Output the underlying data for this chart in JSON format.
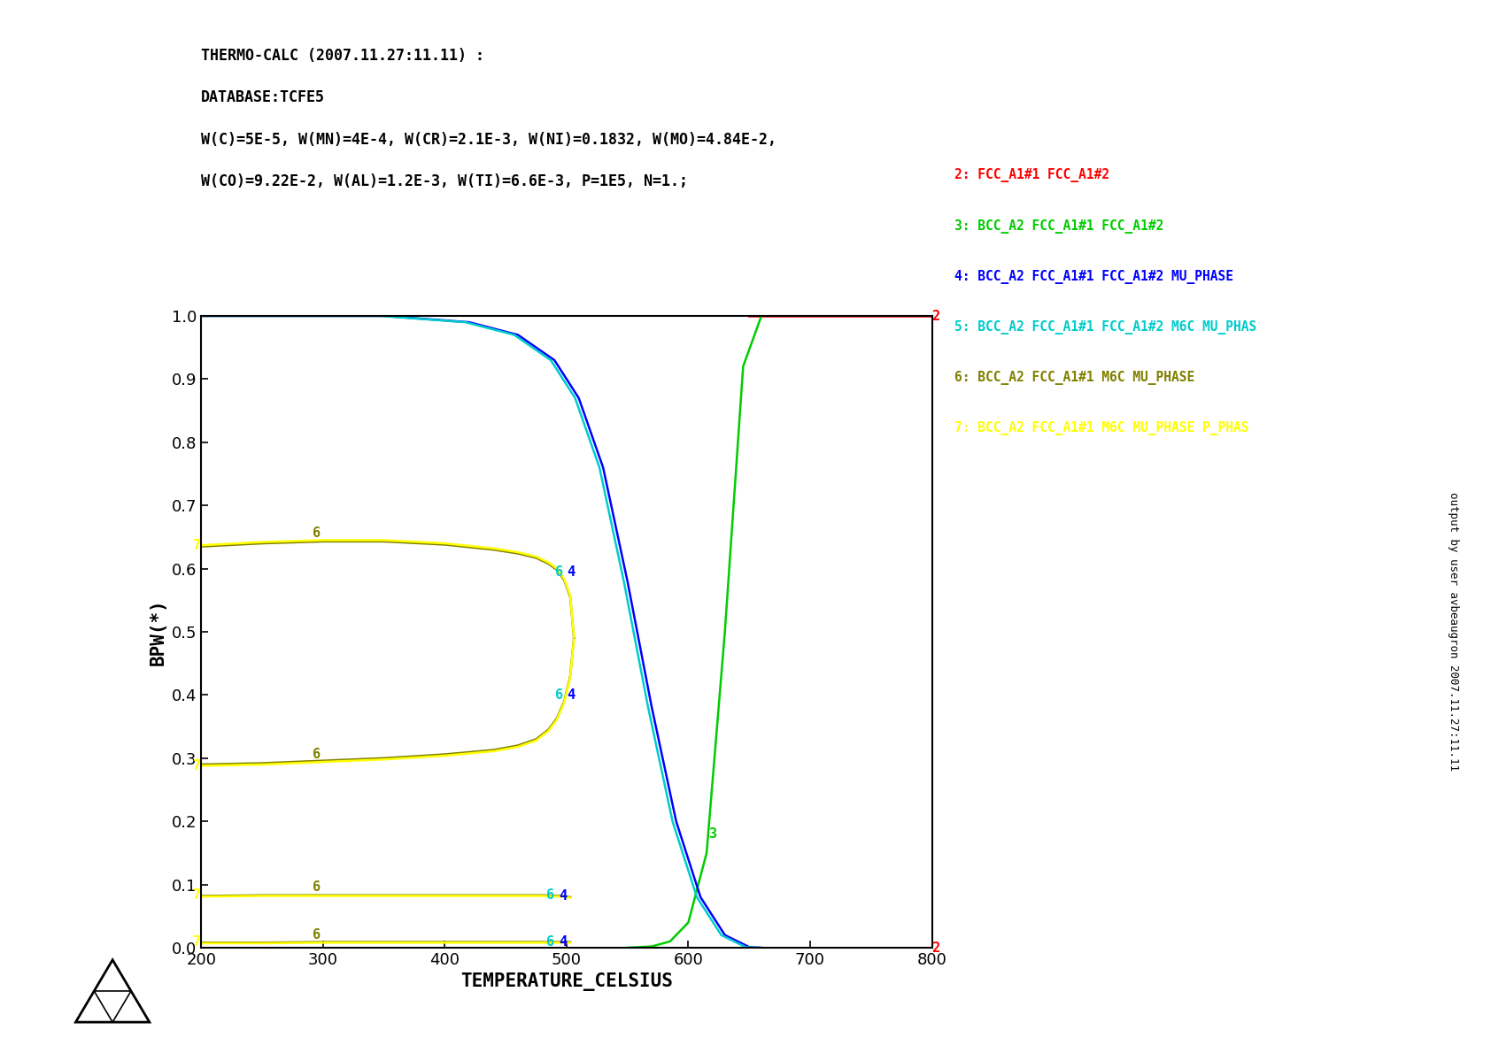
{
  "header_lines": [
    "THERMO-CALC (2007.11.27:11.11) :",
    "DATABASE:TCFE5",
    "W(C)=5E-5, W(MN)=4E-4, W(CR)=2.1E-3, W(NI)=0.1832, W(MO)=4.84E-2,",
    "W(CO)=9.22E-2, W(AL)=1.2E-3, W(TI)=6.6E-3, P=1E5, N=1.;"
  ],
  "xlabel": "TEMPERATURE_CELSIUS",
  "ylabel": "BPW(*)",
  "xmin": 200,
  "xmax": 800,
  "ymin": 0.0,
  "ymax": 1.0,
  "xticks": [
    200,
    300,
    400,
    500,
    600,
    700,
    800
  ],
  "yticks": [
    0.0,
    0.1,
    0.2,
    0.3,
    0.4,
    0.5,
    0.6,
    0.7,
    0.8,
    0.9,
    1.0
  ],
  "right_label_text": "output by user avbeaugron 2007.11.27:11.11",
  "legend_items": [
    {
      "num": "2",
      "color": "#ff0000",
      "text": "2: FCC_A1#1 FCC_A1#2"
    },
    {
      "num": "3",
      "color": "#00cc00",
      "text": "3: BCC_A2 FCC_A1#1 FCC_A1#2"
    },
    {
      "num": "4",
      "color": "#0000ff",
      "text": "4: BCC_A2 FCC_A1#1 FCC_A1#2 MU_PHASE"
    },
    {
      "num": "5",
      "color": "#00cccc",
      "text": "5: BCC_A2 FCC_A1#1 FCC_A1#2 M6C MU_PHAS"
    },
    {
      "num": "6",
      "color": "#808000",
      "text": "6: BCC_A2 FCC_A1#1 M6C MU_PHASE"
    },
    {
      "num": "7",
      "color": "#ffff00",
      "text": "7: BCC_A2 FCC_A1#1 M6C MU_PHASE P_PHAS"
    }
  ],
  "background_color": "#ffffff",
  "phase2_color": "#ff0000",
  "phase3_color": "#00cc00",
  "phase4_color": "#0000ff",
  "phase5_color": "#00cccc",
  "phase6_color": "#808000",
  "phase7_color": "#ffff00"
}
